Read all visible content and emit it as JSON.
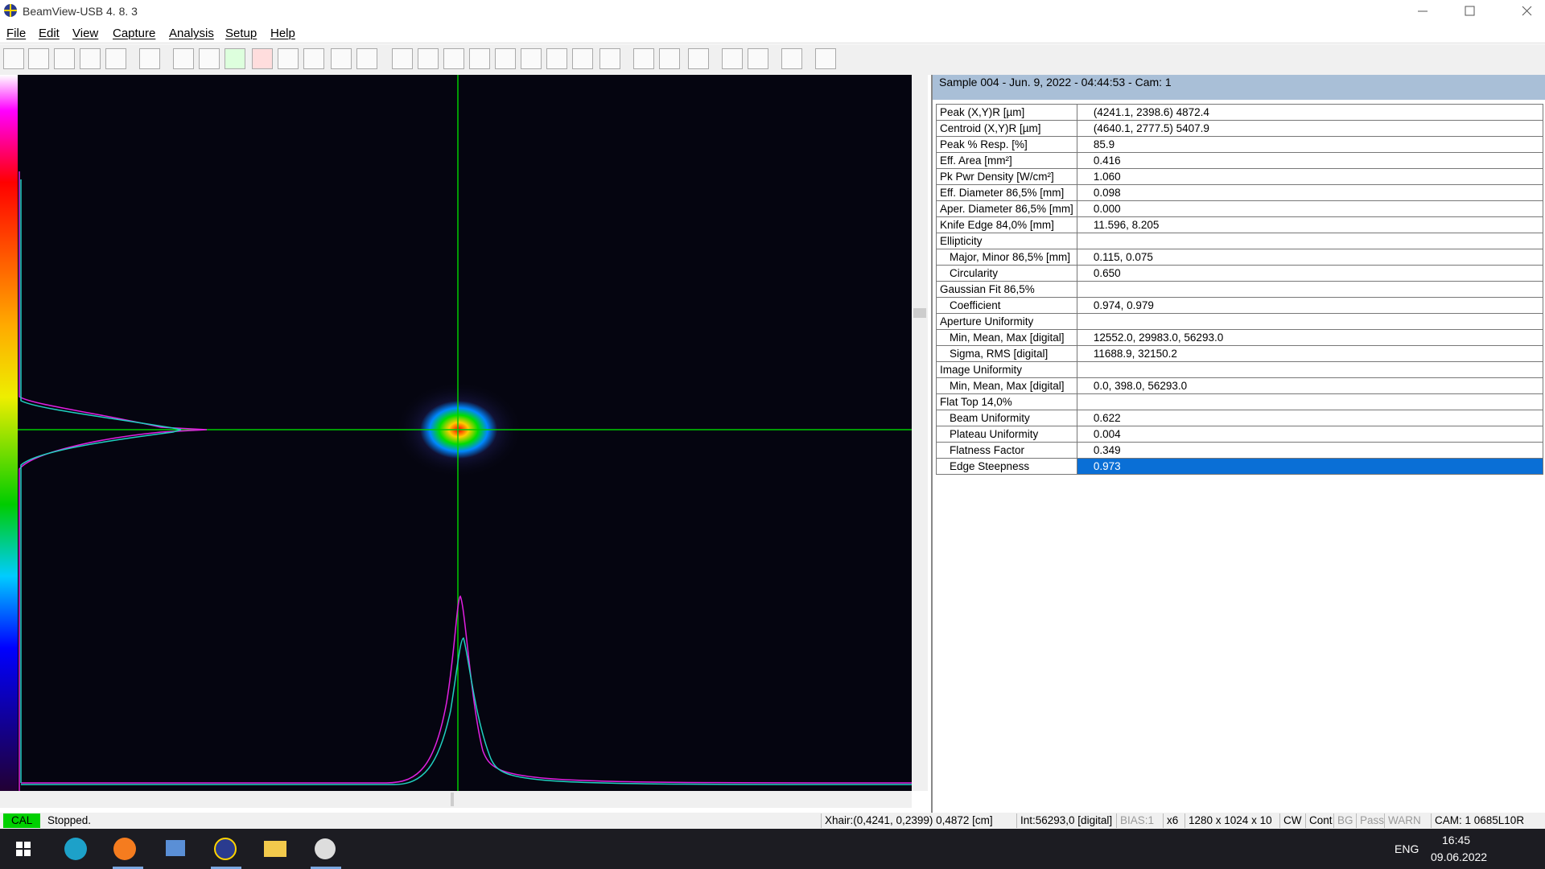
{
  "window": {
    "title": "BeamView-USB 4. 8. 3"
  },
  "menu": [
    "File",
    "Edit",
    "View",
    "Capture",
    "Analysis",
    "Setup",
    "Help"
  ],
  "results": {
    "header": "Sample  004  -  Jun. 9, 2022  -  04:44:53  -  Cam:  1",
    "rows": [
      {
        "label": "Peak (X,Y)R [µm]",
        "value": "(4241.1, 2398.6) 4872.4"
      },
      {
        "label": "Centroid (X,Y)R [µm]",
        "value": "(4640.1, 2777.5) 5407.9"
      },
      {
        "label": "Peak % Resp. [%]",
        "value": "85.9"
      },
      {
        "label": "Eff. Area [mm²]",
        "value": "0.416"
      },
      {
        "label": "Pk Pwr Density [W/cm²]",
        "value": "1.060"
      },
      {
        "label": "Eff. Diameter 86,5% [mm]",
        "value": "0.098"
      },
      {
        "label": "Aper. Diameter 86,5% [mm]",
        "value": "0.000"
      },
      {
        "label": "Knife Edge 84,0% [mm]",
        "value": "11.596, 8.205"
      },
      {
        "label": "Ellipticity"
      },
      {
        "label": "Major, Minor 86,5% [mm]",
        "value": "0.115, 0.075"
      },
      {
        "label": "Circularity",
        "value": "0.650"
      },
      {
        "label": "Gaussian Fit 86,5%"
      },
      {
        "label": "Coefficient",
        "value": "0.974, 0.979"
      },
      {
        "label": "Aperture Uniformity"
      },
      {
        "label": "Min, Mean, Max [digital]",
        "value": "12552.0, 29983.0, 56293.0"
      },
      {
        "label": "Sigma, RMS [digital]",
        "value": "11688.9, 32150.2"
      },
      {
        "label": "Image Uniformity"
      },
      {
        "label": "Min, Mean, Max [digital]",
        "value": "0.0, 398.0, 56293.0"
      },
      {
        "label": "Flat Top 14,0%"
      },
      {
        "label": "Beam Uniformity",
        "value": "0.622"
      },
      {
        "label": "Plateau Uniformity",
        "value": "0.004"
      },
      {
        "label": "Flatness Factor",
        "value": "0.349"
      },
      {
        "label": "Edge Steepness",
        "value": "0.973"
      }
    ]
  },
  "status": [
    "CAL",
    "Stopped.",
    "Xhair:(0,4241, 0,2399) 0,4872 [cm]",
    "Int:56293,0 [digital]",
    "BIAS:1",
    "x6",
    "1280 x 1024 x 10",
    "CW",
    "Cont",
    "BG",
    "Pass",
    "WARN",
    "CAM: 1 0685L10R"
  ],
  "taskbar": {
    "language": "ENG",
    "time": "16:45",
    "date": "09.06.2022"
  }
}
